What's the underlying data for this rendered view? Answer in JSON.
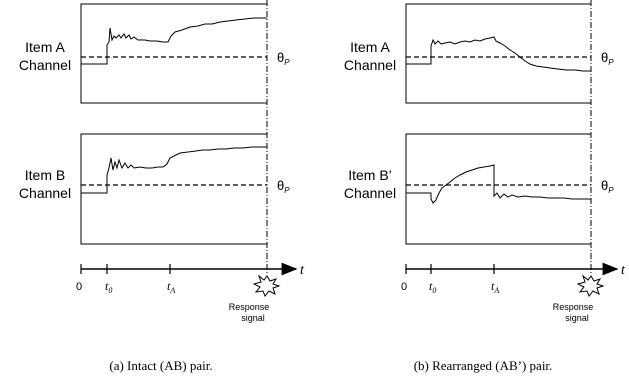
{
  "panels": [
    {
      "id": "a",
      "caption": "(a) Intact (AB) pair.",
      "top_channel": {
        "label_line1": "Item A",
        "label_line2": "Channel",
        "threshold_symbol": "θ",
        "threshold_subscript": "P"
      },
      "bottom_channel": {
        "label_line1": "Item B",
        "label_line2": "Channel",
        "threshold_symbol": "θ",
        "threshold_subscript": "P"
      },
      "timeline": {
        "origin_label": "0",
        "t0_label": "t",
        "t0_sub": "0",
        "tA_label": "t",
        "tA_sub": "A",
        "axis_label": "t",
        "response_line1": "Response",
        "response_line2": "signal"
      }
    },
    {
      "id": "b",
      "caption": "(b) Rearranged (AB’) pair.",
      "top_channel": {
        "label_line1": "Item A",
        "label_line2": "Channel",
        "threshold_symbol": "θ",
        "threshold_subscript": "P"
      },
      "bottom_channel": {
        "label_line1": "Item B’",
        "label_line2": "Channel",
        "threshold_symbol": "θ",
        "threshold_subscript": "P"
      },
      "timeline": {
        "origin_label": "0",
        "t0_label": "t",
        "t0_sub": "0",
        "tA_label": "t",
        "tA_sub": "A",
        "axis_label": "t",
        "response_line1": "Response",
        "response_line2": "signal"
      }
    }
  ]
}
